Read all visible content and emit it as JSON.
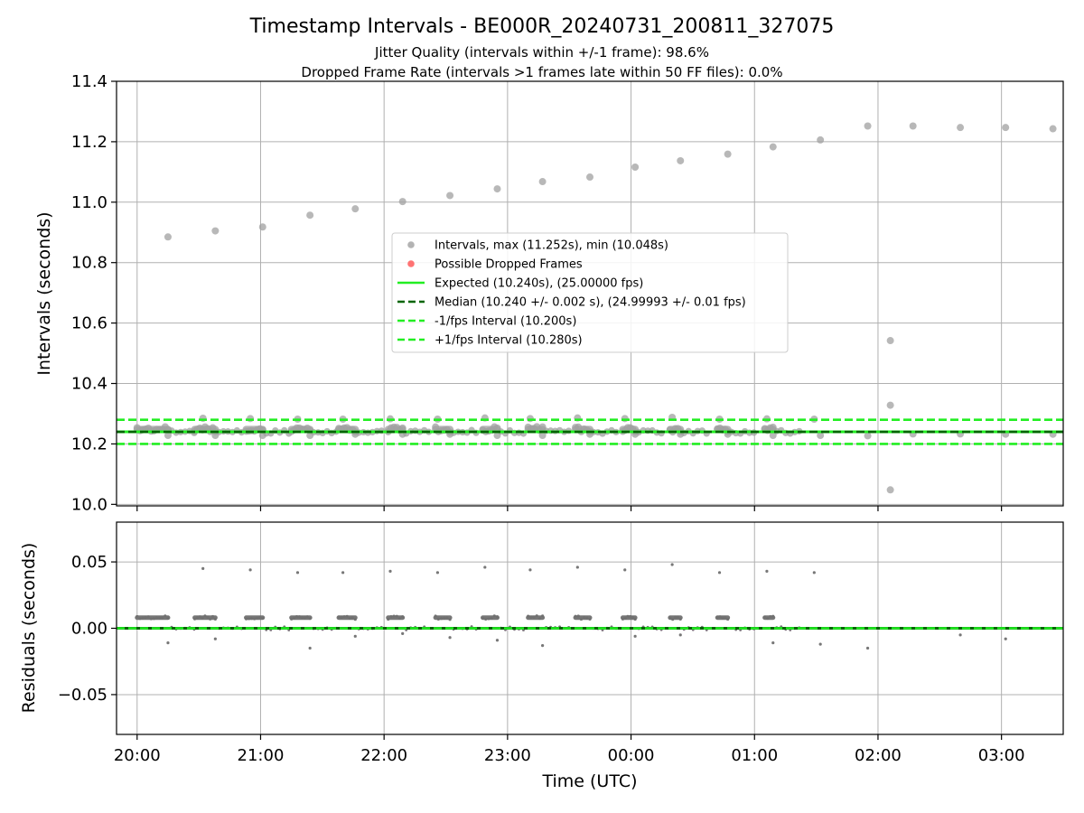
{
  "chart_data": [
    {
      "type": "scatter",
      "title": "Timestamp Intervals - BE000R_20240731_200811_327075",
      "subtitle_lines": [
        "Jitter Quality (intervals within +/-1 frame): 98.6%",
        "Dropped Frame Rate (intervals >1 frames late within 50 FF files): 0.0%"
      ],
      "ylabel": "Intervals (seconds)",
      "xlim": [
        "2024-07-31T19:50:00Z",
        "2024-08-01T03:30:00Z"
      ],
      "ylim": [
        9.995,
        11.4
      ],
      "grid": true,
      "x_tick_labels": [
        "20:00",
        "21:00",
        "22:00",
        "23:00",
        "00:00",
        "01:00",
        "02:00",
        "03:00"
      ],
      "x_ticks": [
        "2024-07-31T20:00:00Z",
        "2024-07-31T21:00:00Z",
        "2024-07-31T22:00:00Z",
        "2024-07-31T23:00:00Z",
        "2024-08-01T00:00:00Z",
        "2024-08-01T01:00:00Z",
        "2024-08-01T02:00:00Z",
        "2024-08-01T03:00:00Z"
      ],
      "y_ticks": [
        10.0,
        10.2,
        10.4,
        10.6,
        10.8,
        11.0,
        11.2,
        11.4
      ],
      "y_tick_labels": [
        "10.0",
        "10.2",
        "10.4",
        "10.6",
        "10.8",
        "11.0",
        "11.2",
        "11.4"
      ],
      "legend_position": "center",
      "legend": [
        {
          "label": "Intervals, max (11.252s), min (10.048s)",
          "kind": "marker",
          "color": "#a0a0a0"
        },
        {
          "label": "Possible Dropped Frames",
          "kind": "marker",
          "color": "#ff5050"
        },
        {
          "label": "Expected (10.240s), (25.00000 fps)",
          "kind": "solid",
          "color": "#22ee22"
        },
        {
          "label": "Median (10.240 +/- 0.002 s), (24.99993 +/- 0.01 fps)",
          "kind": "dashed",
          "color": "#006400"
        },
        {
          "label": "-1/fps Interval (10.200s)",
          "kind": "dashed",
          "color": "#22ee22"
        },
        {
          "label": "+1/fps Interval (10.280s)",
          "kind": "dashed",
          "color": "#22ee22"
        }
      ],
      "reference_lines": [
        {
          "name": "Expected",
          "y": 10.24,
          "color": "#22ee22",
          "style": "solid"
        },
        {
          "name": "Median",
          "y": 10.24,
          "color": "#006400",
          "style": "dashed"
        },
        {
          "name": "-1/fps Interval",
          "y": 10.2,
          "color": "#22ee22",
          "style": "dashed"
        },
        {
          "name": "+1/fps Interval",
          "y": 10.28,
          "color": "#22ee22",
          "style": "dashed"
        }
      ],
      "series": [
        {
          "kind": "intervals",
          "color": "#a0a0a0",
          "points": [
            {
              "x": "2024-07-31T20:15:00Z",
              "y": 10.885
            },
            {
              "x": "2024-07-31T20:38:00Z",
              "y": 10.905
            },
            {
              "x": "2024-07-31T21:01:00Z",
              "y": 10.918
            },
            {
              "x": "2024-07-31T21:24:00Z",
              "y": 10.957
            },
            {
              "x": "2024-07-31T21:46:00Z",
              "y": 10.978
            },
            {
              "x": "2024-07-31T22:09:00Z",
              "y": 11.002
            },
            {
              "x": "2024-07-31T22:32:00Z",
              "y": 11.022
            },
            {
              "x": "2024-07-31T22:55:00Z",
              "y": 11.044
            },
            {
              "x": "2024-07-31T23:17:00Z",
              "y": 11.068
            },
            {
              "x": "2024-07-31T23:40:00Z",
              "y": 11.083
            },
            {
              "x": "2024-08-01T00:02:00Z",
              "y": 11.116
            },
            {
              "x": "2024-08-01T00:24:00Z",
              "y": 11.137
            },
            {
              "x": "2024-08-01T00:47:00Z",
              "y": 11.159
            },
            {
              "x": "2024-08-01T01:09:00Z",
              "y": 11.183
            },
            {
              "x": "2024-08-01T01:32:00Z",
              "y": 11.206
            },
            {
              "x": "2024-08-01T01:55:00Z",
              "y": 11.252
            },
            {
              "x": "2024-08-01T02:17:00Z",
              "y": 11.252
            },
            {
              "x": "2024-08-01T02:40:00Z",
              "y": 11.247
            },
            {
              "x": "2024-08-01T03:02:00Z",
              "y": 11.247
            },
            {
              "x": "2024-08-01T03:25:00Z",
              "y": 11.243
            },
            {
              "x": "2024-08-01T02:06:00Z",
              "y": 10.542
            },
            {
              "x": "2024-08-01T02:06:00Z",
              "y": 10.328
            },
            {
              "x": "2024-08-01T02:06:00Z",
              "y": 10.048
            },
            {
              "x": "2024-08-01T01:55:00Z",
              "y": 10.227
            },
            {
              "x": "2024-07-31T20:15:00Z",
              "y": 10.228
            },
            {
              "x": "2024-07-31T20:38:00Z",
              "y": 10.228
            },
            {
              "x": "2024-07-31T21:01:00Z",
              "y": 10.228
            },
            {
              "x": "2024-07-31T21:24:00Z",
              "y": 10.228
            },
            {
              "x": "2024-07-31T21:46:00Z",
              "y": 10.232
            },
            {
              "x": "2024-07-31T22:09:00Z",
              "y": 10.232
            },
            {
              "x": "2024-07-31T22:32:00Z",
              "y": 10.232
            },
            {
              "x": "2024-07-31T22:55:00Z",
              "y": 10.228
            },
            {
              "x": "2024-07-31T23:17:00Z",
              "y": 10.228
            },
            {
              "x": "2024-07-31T23:40:00Z",
              "y": 10.232
            },
            {
              "x": "2024-08-01T00:02:00Z",
              "y": 10.232
            },
            {
              "x": "2024-08-01T00:24:00Z",
              "y": 10.232
            },
            {
              "x": "2024-08-01T00:47:00Z",
              "y": 10.232
            },
            {
              "x": "2024-08-01T01:09:00Z",
              "y": 10.228
            },
            {
              "x": "2024-08-01T01:32:00Z",
              "y": 10.228
            },
            {
              "x": "2024-08-01T02:17:00Z",
              "y": 10.233
            },
            {
              "x": "2024-08-01T02:40:00Z",
              "y": 10.233
            },
            {
              "x": "2024-08-01T03:02:00Z",
              "y": 10.232
            },
            {
              "x": "2024-08-01T03:25:00Z",
              "y": 10.232
            },
            {
              "x": "2024-07-31T20:32:00Z",
              "y": 10.285
            },
            {
              "x": "2024-07-31T20:55:00Z",
              "y": 10.284
            },
            {
              "x": "2024-07-31T21:18:00Z",
              "y": 10.282
            },
            {
              "x": "2024-07-31T21:40:00Z",
              "y": 10.282
            },
            {
              "x": "2024-07-31T22:03:00Z",
              "y": 10.283
            },
            {
              "x": "2024-07-31T22:26:00Z",
              "y": 10.282
            },
            {
              "x": "2024-07-31T22:49:00Z",
              "y": 10.286
            },
            {
              "x": "2024-07-31T23:11:00Z",
              "y": 10.284
            },
            {
              "x": "2024-07-31T23:34:00Z",
              "y": 10.286
            },
            {
              "x": "2024-07-31T23:57:00Z",
              "y": 10.284
            },
            {
              "x": "2024-08-01T00:20:00Z",
              "y": 10.288
            },
            {
              "x": "2024-08-01T00:43:00Z",
              "y": 10.282
            },
            {
              "x": "2024-08-01T01:06:00Z",
              "y": 10.283
            },
            {
              "x": "2024-08-01T01:29:00Z",
              "y": 10.282
            }
          ],
          "clusters": [
            {
              "x_start": "2024-07-31T20:00:00Z",
              "x_end": "2024-07-31T20:15:00Z",
              "y": 10.248
            },
            {
              "x_start": "2024-07-31T20:28:00Z",
              "x_end": "2024-07-31T20:38:00Z",
              "y": 10.248
            },
            {
              "x_start": "2024-07-31T20:53:00Z",
              "x_end": "2024-07-31T21:01:00Z",
              "y": 10.248
            },
            {
              "x_start": "2024-07-31T21:15:00Z",
              "x_end": "2024-07-31T21:24:00Z",
              "y": 10.248
            },
            {
              "x_start": "2024-07-31T21:38:00Z",
              "x_end": "2024-07-31T21:46:00Z",
              "y": 10.248
            },
            {
              "x_start": "2024-07-31T22:02:00Z",
              "x_end": "2024-07-31T22:09:00Z",
              "y": 10.248
            },
            {
              "x_start": "2024-07-31T22:25:00Z",
              "x_end": "2024-07-31T22:32:00Z",
              "y": 10.248
            },
            {
              "x_start": "2024-07-31T22:48:00Z",
              "x_end": "2024-07-31T22:55:00Z",
              "y": 10.248
            },
            {
              "x_start": "2024-07-31T23:10:00Z",
              "x_end": "2024-07-31T23:17:00Z",
              "y": 10.248
            },
            {
              "x_start": "2024-07-31T23:33:00Z",
              "x_end": "2024-07-31T23:40:00Z",
              "y": 10.248
            },
            {
              "x_start": "2024-07-31T23:56:00Z",
              "x_end": "2024-08-01T00:02:00Z",
              "y": 10.248
            },
            {
              "x_start": "2024-08-01T00:19:00Z",
              "x_end": "2024-08-01T00:24:00Z",
              "y": 10.248
            },
            {
              "x_start": "2024-08-01T00:42:00Z",
              "x_end": "2024-08-01T00:47:00Z",
              "y": 10.248
            },
            {
              "x_start": "2024-08-01T01:05:00Z",
              "x_end": "2024-08-01T01:09:00Z",
              "y": 10.248
            }
          ]
        },
        {
          "kind": "possible-dropped-frames",
          "color": "#ff5050",
          "points": []
        }
      ]
    },
    {
      "type": "scatter",
      "ylabel": "Residuals (seconds)",
      "xlabel": "Time (UTC)",
      "xlim": [
        "2024-07-31T19:50:00Z",
        "2024-08-01T03:30:00Z"
      ],
      "ylim": [
        -0.08,
        0.08
      ],
      "grid": true,
      "x_tick_labels": [
        "20:00",
        "21:00",
        "22:00",
        "23:00",
        "00:00",
        "01:00",
        "02:00",
        "03:00"
      ],
      "x_ticks": [
        "2024-07-31T20:00:00Z",
        "2024-07-31T21:00:00Z",
        "2024-07-31T22:00:00Z",
        "2024-07-31T23:00:00Z",
        "2024-08-01T00:00:00Z",
        "2024-08-01T01:00:00Z",
        "2024-08-01T02:00:00Z",
        "2024-08-01T03:00:00Z"
      ],
      "y_ticks": [
        0.05,
        0.0,
        -0.05
      ],
      "y_tick_labels": [
        "0.05",
        "0.00",
        "−0.05"
      ],
      "reference_lines": [
        {
          "y": 0.0,
          "color": "#006400",
          "style": "solid"
        },
        {
          "y": 0.0,
          "color": "#22ee22",
          "style": "dashed"
        }
      ],
      "series": [
        {
          "kind": "residuals",
          "color": "#707070",
          "points": [
            {
              "x": "2024-07-31T20:32:00Z",
              "y": 0.045
            },
            {
              "x": "2024-07-31T20:55:00Z",
              "y": 0.044
            },
            {
              "x": "2024-07-31T21:18:00Z",
              "y": 0.042
            },
            {
              "x": "2024-07-31T21:40:00Z",
              "y": 0.042
            },
            {
              "x": "2024-07-31T22:03:00Z",
              "y": 0.043
            },
            {
              "x": "2024-07-31T22:26:00Z",
              "y": 0.042
            },
            {
              "x": "2024-07-31T22:49:00Z",
              "y": 0.046
            },
            {
              "x": "2024-07-31T23:11:00Z",
              "y": 0.044
            },
            {
              "x": "2024-07-31T23:34:00Z",
              "y": 0.046
            },
            {
              "x": "2024-07-31T23:57:00Z",
              "y": 0.044
            },
            {
              "x": "2024-08-01T00:20:00Z",
              "y": 0.048
            },
            {
              "x": "2024-08-01T00:43:00Z",
              "y": 0.042
            },
            {
              "x": "2024-08-01T01:06:00Z",
              "y": 0.043
            },
            {
              "x": "2024-08-01T01:29:00Z",
              "y": 0.042
            },
            {
              "x": "2024-07-31T20:15:00Z",
              "y": -0.011
            },
            {
              "x": "2024-07-31T20:38:00Z",
              "y": -0.008
            },
            {
              "x": "2024-07-31T21:24:00Z",
              "y": -0.015
            },
            {
              "x": "2024-07-31T21:46:00Z",
              "y": -0.006
            },
            {
              "x": "2024-07-31T22:09:00Z",
              "y": -0.004
            },
            {
              "x": "2024-07-31T22:32:00Z",
              "y": -0.007
            },
            {
              "x": "2024-07-31T22:55:00Z",
              "y": -0.009
            },
            {
              "x": "2024-07-31T23:17:00Z",
              "y": -0.013
            },
            {
              "x": "2024-08-01T00:02:00Z",
              "y": -0.006
            },
            {
              "x": "2024-08-01T00:24:00Z",
              "y": -0.005
            },
            {
              "x": "2024-08-01T01:09:00Z",
              "y": -0.011
            },
            {
              "x": "2024-08-01T01:32:00Z",
              "y": -0.012
            },
            {
              "x": "2024-08-01T01:55:00Z",
              "y": -0.015
            },
            {
              "x": "2024-08-01T02:40:00Z",
              "y": -0.005
            },
            {
              "x": "2024-08-01T03:02:00Z",
              "y": -0.008
            }
          ],
          "clusters": [
            {
              "x_start": "2024-07-31T20:00:00Z",
              "x_end": "2024-07-31T20:15:00Z",
              "y": 0.008
            },
            {
              "x_start": "2024-07-31T20:28:00Z",
              "x_end": "2024-07-31T20:38:00Z",
              "y": 0.008
            },
            {
              "x_start": "2024-07-31T20:53:00Z",
              "x_end": "2024-07-31T21:01:00Z",
              "y": 0.008
            },
            {
              "x_start": "2024-07-31T21:15:00Z",
              "x_end": "2024-07-31T21:24:00Z",
              "y": 0.008
            },
            {
              "x_start": "2024-07-31T21:38:00Z",
              "x_end": "2024-07-31T21:46:00Z",
              "y": 0.008
            },
            {
              "x_start": "2024-07-31T22:02:00Z",
              "x_end": "2024-07-31T22:09:00Z",
              "y": 0.008
            },
            {
              "x_start": "2024-07-31T22:25:00Z",
              "x_end": "2024-07-31T22:32:00Z",
              "y": 0.008
            },
            {
              "x_start": "2024-07-31T22:48:00Z",
              "x_end": "2024-07-31T22:55:00Z",
              "y": 0.008
            },
            {
              "x_start": "2024-07-31T23:10:00Z",
              "x_end": "2024-07-31T23:17:00Z",
              "y": 0.008
            },
            {
              "x_start": "2024-07-31T23:33:00Z",
              "x_end": "2024-07-31T23:40:00Z",
              "y": 0.008
            },
            {
              "x_start": "2024-07-31T23:56:00Z",
              "x_end": "2024-08-01T00:02:00Z",
              "y": 0.008
            },
            {
              "x_start": "2024-08-01T00:19:00Z",
              "x_end": "2024-08-01T00:24:00Z",
              "y": 0.008
            },
            {
              "x_start": "2024-08-01T00:42:00Z",
              "x_end": "2024-08-01T00:47:00Z",
              "y": 0.008
            },
            {
              "x_start": "2024-08-01T01:05:00Z",
              "x_end": "2024-08-01T01:09:00Z",
              "y": 0.008
            }
          ]
        }
      ]
    }
  ]
}
